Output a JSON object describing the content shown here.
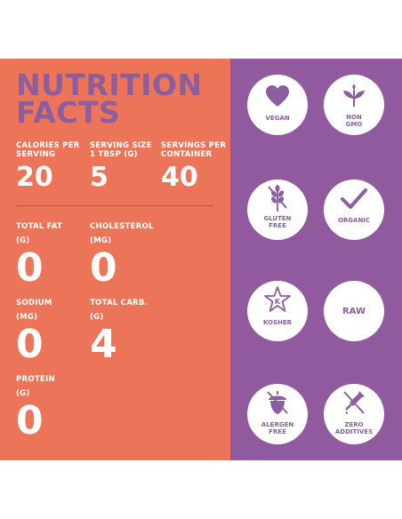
{
  "title": {
    "line1": "NUTRITION",
    "line2": "FACTS"
  },
  "summary": [
    {
      "label_line1": "CALORIES PER",
      "label_line2": "SERVING",
      "value": "20"
    },
    {
      "label_line1": "SERVING SIZE",
      "label_line2": "1 TBSP (G)",
      "value": "5"
    },
    {
      "label_line1": "SERVINGS PER",
      "label_line2": "CONTAINER",
      "value": "40"
    }
  ],
  "nutrients": [
    {
      "label": "TOTAL FAT",
      "unit": "(G)",
      "value": "0"
    },
    {
      "label": "CHOLESTEROL",
      "unit": "(MG)",
      "value": "0"
    },
    {
      "label": "SODIUM",
      "unit": "(MG)",
      "value": "0"
    },
    {
      "label": "TOTAL CARB.",
      "unit": "(G)",
      "value": "4"
    },
    {
      "label": "PROTEIN",
      "unit": "(G)",
      "value": "0"
    }
  ],
  "badges": [
    {
      "icon": "heart-icon",
      "line1": "VEGAN",
      "line2": ""
    },
    {
      "icon": "leaves-icon",
      "line1": "NON",
      "line2": "GMO"
    },
    {
      "icon": "wheat-crossed-icon",
      "line1": "GLUTEN",
      "line2": "FREE"
    },
    {
      "icon": "checkmark-icon",
      "line1": "ORGANIC",
      "line2": ""
    },
    {
      "icon": "kosher-star-icon",
      "line1": "KOSHER",
      "line2": ""
    },
    {
      "icon": "none",
      "line1": "RAW",
      "line2": ""
    },
    {
      "icon": "acorn-crossed-icon",
      "line1": "ALERGEN",
      "line2": "FREE"
    },
    {
      "icon": "dropper-crossed-icon",
      "line1": "ZERO",
      "line2": "ADDITIVES"
    }
  ],
  "colors": {
    "orange": "#ec7559",
    "purple": "#925a9e",
    "title_purple": "#8b5ea0",
    "white": "#ffffff"
  }
}
